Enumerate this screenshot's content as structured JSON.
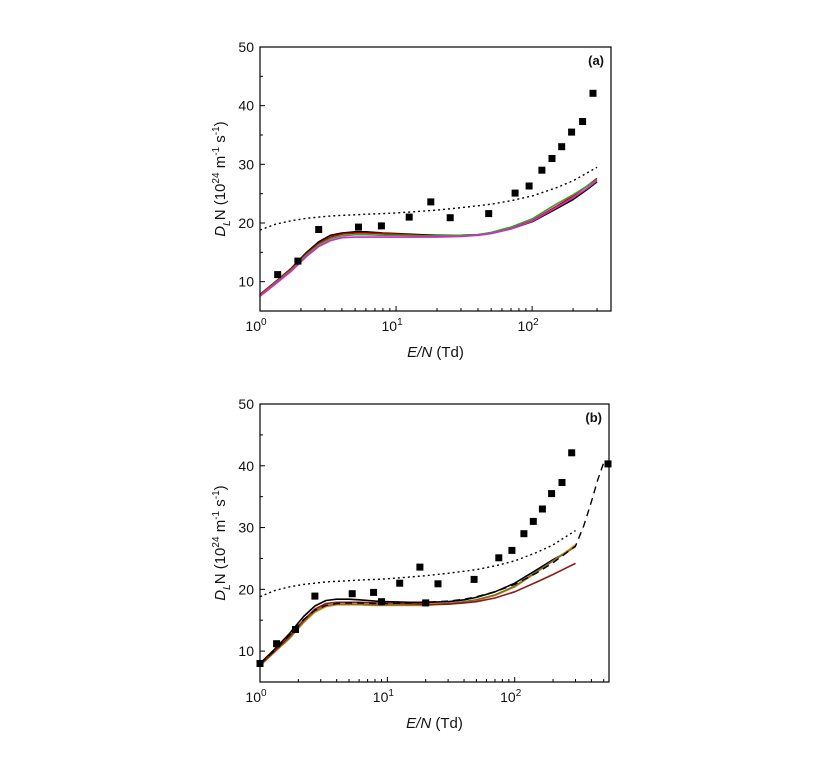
{
  "chart_data": [
    {
      "panel": "(a)",
      "type": "line",
      "xscale": "log",
      "xlim": [
        1,
        380
      ],
      "ylim": [
        5,
        50
      ],
      "yticks": [
        10,
        20,
        30,
        40,
        50
      ],
      "xticks": [
        {
          "value": 1,
          "base": "10",
          "exp": "0"
        },
        {
          "value": 10,
          "base": "10",
          "exp": "1"
        },
        {
          "value": 100,
          "base": "10",
          "exp": "2"
        }
      ],
      "xlabel": {
        "italic": "E/N",
        "rest": " (Td)"
      },
      "ylabel": {
        "main": "D",
        "sub": "L",
        "mid": "N (10",
        "sup1": "24",
        "mid2": " m",
        "sup2": "-1",
        "mid3": " s",
        "sup3": "-1",
        "end": ")"
      },
      "grid": false,
      "legend": "none",
      "series": [
        {
          "style": "solid",
          "color": "#000000",
          "x": [
            1,
            1.3,
            1.7,
            2.2,
            2.7,
            3.3,
            4,
            5,
            6,
            8,
            10,
            15,
            20,
            30,
            40,
            50,
            70,
            100,
            150,
            200,
            250,
            300
          ],
          "y": [
            7.8,
            10,
            12.3,
            15,
            16.8,
            17.9,
            18.3,
            18.5,
            18.5,
            18.3,
            18.2,
            18,
            17.9,
            17.9,
            18,
            18.3,
            19,
            20.2,
            22.4,
            24,
            25.6,
            27
          ]
        },
        {
          "style": "solid",
          "color": "#cc0000",
          "x": [
            1,
            1.3,
            1.7,
            2.2,
            2.7,
            3.3,
            4,
            5,
            6,
            8,
            10,
            15,
            20,
            30,
            40,
            50,
            70,
            100,
            150,
            200,
            250,
            300
          ],
          "y": [
            7.8,
            10,
            12.2,
            14.8,
            16.5,
            17.6,
            18.1,
            18.3,
            18.3,
            18.2,
            18.1,
            17.9,
            17.8,
            17.9,
            18,
            18.3,
            19.1,
            20.4,
            22.8,
            24.6,
            26.2,
            27.6
          ]
        },
        {
          "style": "solid",
          "color": "#2ea52e",
          "x": [
            1,
            1.3,
            1.7,
            2.2,
            2.7,
            3.3,
            4,
            5,
            6,
            8,
            10,
            15,
            20,
            30,
            40,
            50,
            70,
            100,
            150,
            200,
            250,
            300
          ],
          "y": [
            7.6,
            9.8,
            12,
            14.6,
            16.3,
            17.3,
            17.8,
            18,
            18,
            17.9,
            17.9,
            17.8,
            17.8,
            17.9,
            18,
            18.4,
            19.3,
            20.7,
            23.2,
            24.8,
            26.2,
            27.4
          ]
        },
        {
          "style": "solid",
          "color": "#dd22cc",
          "x": [
            1,
            1.3,
            1.7,
            2.2,
            2.7,
            3.3,
            4,
            5,
            6,
            8,
            10,
            15,
            20,
            30,
            40,
            50,
            70,
            100,
            150,
            200,
            250,
            300
          ],
          "y": [
            7.5,
            9.6,
            11.8,
            14.3,
            16,
            17,
            17.5,
            17.6,
            17.6,
            17.6,
            17.6,
            17.6,
            17.6,
            17.7,
            17.9,
            18.2,
            19,
            20.3,
            22.6,
            24.3,
            25.8,
            27.2
          ]
        },
        {
          "style": "dotted",
          "color": "#000000",
          "x": [
            1,
            1.3,
            1.7,
            2.2,
            2.7,
            3.3,
            4,
            5,
            6,
            8,
            10,
            15,
            20,
            30,
            50,
            70,
            100,
            150,
            200,
            300
          ],
          "y": [
            18.8,
            19.8,
            20.4,
            20.8,
            21,
            21.2,
            21.3,
            21.4,
            21.5,
            21.6,
            21.7,
            22,
            22.2,
            22.6,
            23.2,
            23.8,
            24.6,
            26,
            27.2,
            29.5
          ]
        }
      ],
      "points": {
        "marker": "square",
        "color": "#000000",
        "x": [
          1.35,
          1.9,
          2.7,
          5.3,
          7.8,
          12.5,
          18,
          25,
          48,
          75,
          95,
          118,
          140,
          165,
          195,
          235,
          280
        ],
        "y": [
          11.2,
          13.5,
          18.9,
          19.3,
          19.5,
          21,
          23.6,
          20.9,
          21.6,
          25.1,
          26.3,
          29,
          31,
          33,
          35.5,
          37.3,
          42.1
        ]
      }
    },
    {
      "panel": "(b)",
      "type": "line",
      "xscale": "log",
      "xlim": [
        1,
        550
      ],
      "ylim": [
        5,
        50
      ],
      "yticks": [
        10,
        20,
        30,
        40,
        50
      ],
      "xticks": [
        {
          "value": 1,
          "base": "10",
          "exp": "0"
        },
        {
          "value": 10,
          "base": "10",
          "exp": "1"
        },
        {
          "value": 100,
          "base": "10",
          "exp": "2"
        }
      ],
      "xlabel": {
        "italic": "E/N",
        "rest": " (Td)"
      },
      "ylabel": {
        "main": "D",
        "sub": "L",
        "mid": "N (10",
        "sup1": "24",
        "mid2": " m",
        "sup2": "-1",
        "mid3": " s",
        "sup3": "-1",
        "end": ")"
      },
      "grid": false,
      "legend": "none",
      "series": [
        {
          "style": "solid",
          "color": "#000000",
          "x": [
            1,
            1.3,
            1.7,
            2.2,
            2.7,
            3.3,
            4,
            5,
            6,
            8,
            10,
            15,
            20,
            30,
            40,
            50,
            70,
            100,
            150,
            200,
            250,
            300
          ],
          "y": [
            8,
            10.3,
            12.8,
            15.6,
            17.3,
            18.2,
            18.4,
            18.4,
            18.3,
            18.1,
            18,
            17.9,
            17.9,
            18,
            18.3,
            18.7,
            19.6,
            21,
            23.2,
            24.8,
            25.9,
            27
          ]
        },
        {
          "style": "solid",
          "color": "#e68a00",
          "x": [
            1,
            1.3,
            1.7,
            2.2,
            2.7,
            3.3,
            4,
            5,
            6,
            8,
            10,
            15,
            20,
            30,
            40,
            50,
            70,
            100,
            150,
            200,
            250,
            300
          ],
          "y": [
            7.6,
            9.8,
            12,
            14.6,
            16.3,
            17.2,
            17.5,
            17.5,
            17.5,
            17.4,
            17.4,
            17.4,
            17.4,
            17.6,
            17.9,
            18.2,
            19,
            20.4,
            22.8,
            24.6,
            26,
            27.2
          ]
        },
        {
          "style": "solid",
          "color": "#7a6e2a",
          "x": [
            1,
            1.3,
            1.7,
            2.2,
            2.7,
            3.3,
            4,
            5,
            6,
            8,
            10,
            15,
            20,
            30,
            40,
            50,
            70,
            100,
            150,
            200,
            250,
            300
          ],
          "y": [
            7.7,
            9.9,
            12.1,
            14.8,
            16.5,
            17.4,
            17.6,
            17.6,
            17.6,
            17.5,
            17.5,
            17.5,
            17.5,
            17.7,
            18,
            18.3,
            19.1,
            20.5,
            22.9,
            24.6,
            25.9,
            26.9
          ]
        },
        {
          "style": "solid",
          "color": "#8b1a1a",
          "x": [
            1,
            1.3,
            1.7,
            2.2,
            2.7,
            3.3,
            4,
            5,
            6,
            8,
            10,
            15,
            20,
            30,
            40,
            50,
            70,
            100,
            150,
            200,
            250,
            300
          ],
          "y": [
            7.8,
            10,
            12.4,
            15,
            16.8,
            17.7,
            17.9,
            17.9,
            17.9,
            17.8,
            17.8,
            17.7,
            17.6,
            17.6,
            17.8,
            18,
            18.6,
            19.6,
            21.2,
            22.4,
            23.4,
            24.2
          ]
        },
        {
          "style": "dashed",
          "color": "#000000",
          "x": [
            1,
            1.3,
            1.7,
            2.2,
            2.7,
            3.3,
            4,
            5,
            6,
            8,
            10,
            15,
            20,
            30,
            40,
            50,
            70,
            100,
            150,
            200,
            300,
            350,
            400,
            450,
            500
          ],
          "y": [
            8,
            10.1,
            12.6,
            15.1,
            16.6,
            17.4,
            17.7,
            17.8,
            17.8,
            17.7,
            17.7,
            17.8,
            17.9,
            18.1,
            18.4,
            18.8,
            19.6,
            20.8,
            22.7,
            24.3,
            27,
            30.4,
            34.2,
            37.8,
            40.5
          ]
        },
        {
          "style": "dotted",
          "color": "#000000",
          "x": [
            1,
            1.3,
            1.7,
            2.2,
            2.7,
            3.3,
            4,
            5,
            6,
            8,
            10,
            15,
            20,
            30,
            50,
            70,
            100,
            150,
            200,
            300
          ],
          "y": [
            18.8,
            19.8,
            20.4,
            20.8,
            21,
            21.2,
            21.3,
            21.4,
            21.5,
            21.6,
            21.7,
            22,
            22.2,
            22.6,
            23.2,
            23.8,
            24.6,
            26,
            27.2,
            29.5
          ]
        }
      ],
      "points": {
        "marker": "square",
        "color": "#000000",
        "x": [
          1,
          1.35,
          1.9,
          2.7,
          5.3,
          7.8,
          9,
          12.5,
          18,
          20,
          25,
          48,
          75,
          95,
          118,
          140,
          165,
          195,
          235,
          280,
          540
        ],
        "y": [
          8,
          11.2,
          13.5,
          18.9,
          19.3,
          19.5,
          18,
          21,
          23.6,
          17.8,
          20.9,
          21.6,
          25.1,
          26.3,
          29,
          31,
          33,
          35.5,
          37.3,
          42.1,
          40.3
        ]
      }
    }
  ]
}
